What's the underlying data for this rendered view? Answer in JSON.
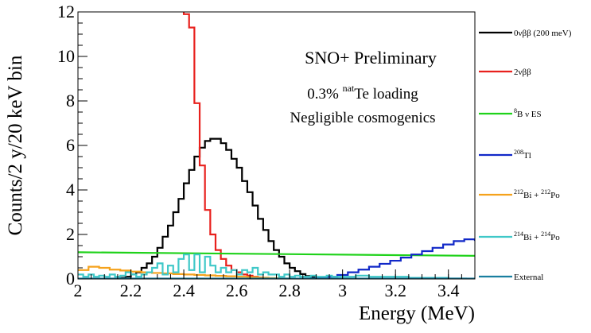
{
  "chart_data": {
    "type": "line",
    "style": "step-histogram",
    "xlabel": "Energy (MeV)",
    "ylabel": "Counts/2 y/20 keV bin",
    "xlim": [
      2.0,
      3.5
    ],
    "ylim": [
      0,
      12
    ],
    "x_ticks": [
      "2",
      "2.2",
      "2.4",
      "2.6",
      "2.8",
      "3",
      "3.2",
      "3.4"
    ],
    "x_tick_values": [
      2.0,
      2.2,
      2.4,
      2.6,
      2.8,
      3.0,
      3.2,
      3.4
    ],
    "y_ticks": [
      "0",
      "2",
      "4",
      "6",
      "8",
      "10",
      "12"
    ],
    "y_tick_values": [
      0,
      2,
      4,
      6,
      8,
      10,
      12
    ],
    "grid": false,
    "legend_placement": "right",
    "annotations": {
      "line1": "SNO+ Preliminary",
      "line2_prefix": "0.3% ",
      "line2_sup": "nat",
      "line2_suffix": "Te loading",
      "line3": "Negligible cosmogenics"
    },
    "series": [
      {
        "name": "0νββ (200 meV)",
        "color": "#000000",
        "x": [
          2.0,
          2.02,
          2.04,
          2.06,
          2.08,
          2.1,
          2.12,
          2.14,
          2.16,
          2.18,
          2.2,
          2.22,
          2.24,
          2.26,
          2.28,
          2.3,
          2.32,
          2.34,
          2.36,
          2.38,
          2.4,
          2.42,
          2.44,
          2.46,
          2.48,
          2.5,
          2.52,
          2.54,
          2.56,
          2.58,
          2.6,
          2.62,
          2.64,
          2.66,
          2.68,
          2.7,
          2.72,
          2.74,
          2.76,
          2.78,
          2.8,
          2.82,
          2.84,
          2.86,
          2.88,
          2.9,
          2.92,
          2.94,
          2.96,
          2.98,
          3.0,
          3.02,
          3.04,
          3.06,
          3.08,
          3.1,
          3.12,
          3.14,
          3.16,
          3.18,
          3.2,
          3.22,
          3.24,
          3.26,
          3.28,
          3.3,
          3.32,
          3.34,
          3.36,
          3.38,
          3.4,
          3.42,
          3.44,
          3.46,
          3.48
        ],
        "values": [
          0,
          0,
          0,
          0,
          0,
          0,
          0,
          0.02,
          0.05,
          0.1,
          0.2,
          0.3,
          0.5,
          0.7,
          1.0,
          1.4,
          1.9,
          2.4,
          3.0,
          3.6,
          4.3,
          4.9,
          5.5,
          5.9,
          6.2,
          6.3,
          6.3,
          6.1,
          5.8,
          5.4,
          5.0,
          4.4,
          3.9,
          3.3,
          2.7,
          2.2,
          1.7,
          1.3,
          1.0,
          0.7,
          0.5,
          0.35,
          0.22,
          0.13,
          0.08,
          0.05,
          0.03,
          0.01,
          0,
          0,
          0,
          0,
          0,
          0,
          0,
          0,
          0,
          0,
          0,
          0,
          0,
          0,
          0,
          0,
          0,
          0,
          0,
          0,
          0,
          0,
          0,
          0,
          0,
          0,
          0
        ]
      },
      {
        "name": "2νββ",
        "color": "#e8211d",
        "x": [
          2.38,
          2.4,
          2.42,
          2.44,
          2.46,
          2.48,
          2.5,
          2.52,
          2.54,
          2.56,
          2.58,
          2.6,
          2.62,
          2.64,
          2.66,
          2.68,
          2.7,
          2.72,
          2.74,
          2.76,
          2.78,
          2.8
        ],
        "values": [
          12.8,
          11.9,
          11.3,
          7.9,
          5.1,
          3.1,
          2.0,
          1.3,
          0.9,
          0.6,
          0.4,
          0.3,
          0.2,
          0.15,
          0.1,
          0.07,
          0.05,
          0.03,
          0.02,
          0.01,
          0.01,
          0
        ]
      },
      {
        "name": "8B ν ES",
        "label_sup": "8",
        "label_text": "B ν ES",
        "color": "#1fd21a",
        "x": [
          2.0,
          3.5
        ],
        "values": [
          1.2,
          1.04
        ]
      },
      {
        "name": "208Tl",
        "label_sup": "208",
        "label_text": "Tl",
        "color": "#1128c8",
        "x": [
          2.0,
          2.1,
          2.2,
          2.3,
          2.4,
          2.5,
          2.6,
          2.7,
          2.8,
          2.86,
          2.9,
          2.94,
          2.98,
          3.02,
          3.06,
          3.1,
          3.14,
          3.18,
          3.22,
          3.26,
          3.3,
          3.34,
          3.38,
          3.42,
          3.46,
          3.5
        ],
        "values": [
          0,
          0,
          0,
          0,
          0,
          0,
          0,
          0,
          0.01,
          0.02,
          0.05,
          0.1,
          0.18,
          0.3,
          0.42,
          0.55,
          0.68,
          0.82,
          0.96,
          1.1,
          1.25,
          1.4,
          1.55,
          1.7,
          1.78,
          1.75
        ]
      },
      {
        "name": "212Bi + 212Po",
        "label_parts": [
          [
            "212",
            "Bi + "
          ],
          [
            "212",
            "Po"
          ]
        ],
        "color": "#f5a21c",
        "x": [
          2.0,
          2.04,
          2.08,
          2.12,
          2.16,
          2.2,
          2.24,
          2.28,
          2.32,
          2.36,
          2.4,
          2.44,
          2.48,
          2.52,
          2.56,
          2.6,
          2.64,
          2.68,
          2.72,
          2.76,
          2.8,
          2.84,
          2.88
        ],
        "values": [
          0.4,
          0.55,
          0.5,
          0.42,
          0.38,
          0.33,
          0.3,
          0.27,
          0.25,
          0.22,
          0.2,
          0.18,
          0.16,
          0.14,
          0.12,
          0.1,
          0.08,
          0.06,
          0.04,
          0.02,
          0.01,
          0.0,
          0
        ]
      },
      {
        "name": "214Bi + 214Po",
        "label_parts": [
          [
            "214",
            "Bi + "
          ],
          [
            "214",
            "Po"
          ]
        ],
        "color": "#3fc8c8",
        "x": [
          2.0,
          2.02,
          2.04,
          2.06,
          2.08,
          2.1,
          2.12,
          2.14,
          2.16,
          2.18,
          2.2,
          2.22,
          2.24,
          2.26,
          2.28,
          2.3,
          2.32,
          2.34,
          2.36,
          2.38,
          2.4,
          2.42,
          2.44,
          2.46,
          2.48,
          2.5,
          2.52,
          2.54,
          2.56,
          2.58,
          2.6,
          2.62,
          2.64,
          2.66,
          2.68,
          2.7,
          2.72,
          2.74,
          2.76,
          2.78,
          2.8,
          2.82,
          2.84,
          2.86,
          2.88,
          2.9,
          2.92,
          2.94,
          2.96,
          2.98,
          3.0,
          3.05,
          3.1,
          3.15,
          3.2,
          3.25,
          3.3,
          3.35,
          3.4,
          3.45
        ],
        "values": [
          0.2,
          0.1,
          0.2,
          0.1,
          0.15,
          0.1,
          0.2,
          0.1,
          0.15,
          0.3,
          0.2,
          0.1,
          0.2,
          0.3,
          0.5,
          0.7,
          0.2,
          0.6,
          0.3,
          0.9,
          1.1,
          0.4,
          1.1,
          0.3,
          1.0,
          0.6,
          0.3,
          0.5,
          0.3,
          0.4,
          0.2,
          0.4,
          0.3,
          0.5,
          0.2,
          0.3,
          0.2,
          0.2,
          0.1,
          0.2,
          0.1,
          0.15,
          0.1,
          0.1,
          0.15,
          0.1,
          0.1,
          0.15,
          0.1,
          0.1,
          0.1,
          0.15,
          0.1,
          0.1,
          0.1,
          0.05,
          0.05,
          0.05,
          0.02,
          0.02
        ]
      },
      {
        "name": "External",
        "color": "#1a7fa0",
        "x": [
          2.0,
          3.5
        ],
        "values": [
          0.02,
          0.02
        ]
      }
    ]
  }
}
